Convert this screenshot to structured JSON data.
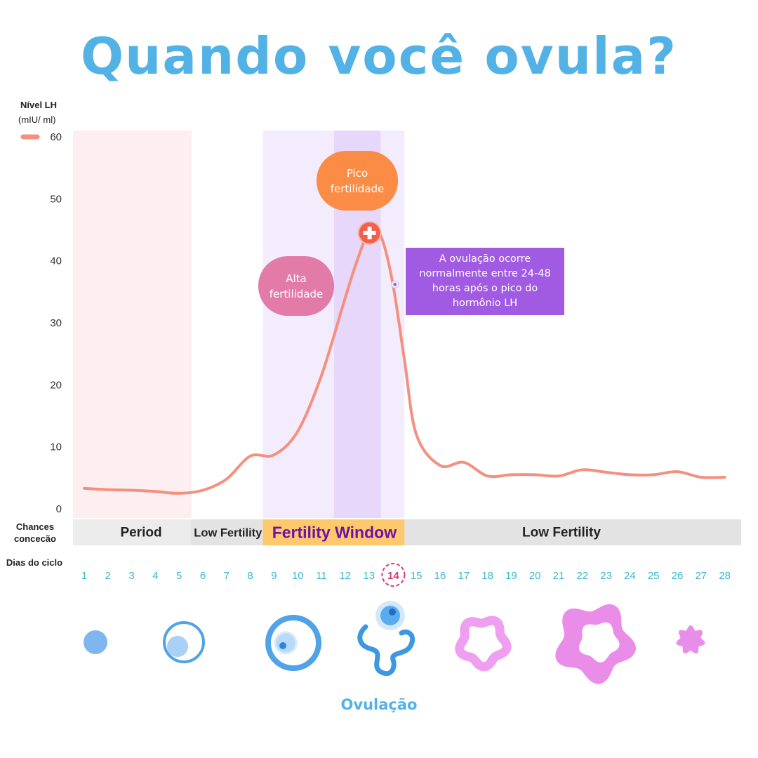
{
  "title": "Quando você ovula?",
  "y_axis": {
    "title_line1": "Nível LH",
    "title_line2": "(mIU/ ml)"
  },
  "phase_row_label": "Chances concecão",
  "day_row_label": "Dias do ciclo",
  "bubbles": {
    "peak": "Pico\nfertilidade",
    "high": "Alta\nfertilidade",
    "note": "A ovulação ocorre normalmente entre 24-48 horas após o pico do hormônio LH"
  },
  "ovulation_label": "Ovulação",
  "colors": {
    "title": "#52b2e6",
    "curve": "#f4907e",
    "period_band": "#fdeef2",
    "window_band": "#f3ecfd",
    "peak_band": "#e6d7fb",
    "fertility_window_bar": "#fdc96c",
    "fertility_window_text": "#6b13a5",
    "day_numbers": "#3bb7d4",
    "day14_ring": "#d63a7f"
  },
  "chart_data": {
    "type": "line",
    "series": [
      {
        "x": [
          1,
          2,
          3,
          4,
          5,
          6,
          7,
          8,
          9,
          10,
          11,
          12,
          12.5,
          13,
          13.5,
          14,
          14.5,
          15,
          16,
          17,
          18,
          19,
          20,
          21,
          22,
          23,
          24,
          25,
          26,
          27,
          28
        ],
        "values": [
          3.3,
          3.1,
          3.0,
          2.8,
          2.5,
          3.0,
          4.8,
          8.5,
          8.7,
          12.5,
          21.5,
          34,
          40,
          44.5,
          44,
          36.5,
          24,
          12,
          7,
          7.5,
          5.3,
          5.5,
          5.5,
          5.3,
          6.3,
          5.9,
          5.5,
          5.5,
          6.0,
          5.1,
          5.1
        ]
      }
    ],
    "xlabel": "Dias do ciclo",
    "ylabel": "Nível LH (mIU/ ml)",
    "ylim": [
      0,
      60
    ],
    "yticks": [
      0,
      10,
      20,
      30,
      40,
      50,
      60
    ],
    "days": [
      1,
      2,
      3,
      4,
      5,
      6,
      7,
      8,
      9,
      10,
      11,
      12,
      13,
      14,
      15,
      16,
      17,
      18,
      19,
      20,
      21,
      22,
      23,
      24,
      25,
      26,
      27,
      28
    ],
    "highlight_day": 14,
    "peak": {
      "x": 13,
      "y": 44.5
    },
    "ovulation_marker": {
      "x": 14.1,
      "y": 36.2
    },
    "phases": [
      {
        "label": "Period",
        "start_day": 1,
        "end_day": 5
      },
      {
        "label": "Low Fertility",
        "start_day": 6,
        "end_day": 8
      },
      {
        "label": "Fertility Window",
        "start_day": 9,
        "end_day": 14
      },
      {
        "label": "Low Fertility",
        "start_day": 15,
        "end_day": 28
      }
    ],
    "grid": false
  },
  "follicle_stages": [
    {
      "name": "small-follicle-icon"
    },
    {
      "name": "growing-follicle-icon"
    },
    {
      "name": "mature-follicle-icon"
    },
    {
      "name": "ovulation-icon"
    },
    {
      "name": "early-corpus-luteum-icon"
    },
    {
      "name": "corpus-luteum-icon"
    },
    {
      "name": "corpus-albicans-icon"
    }
  ]
}
